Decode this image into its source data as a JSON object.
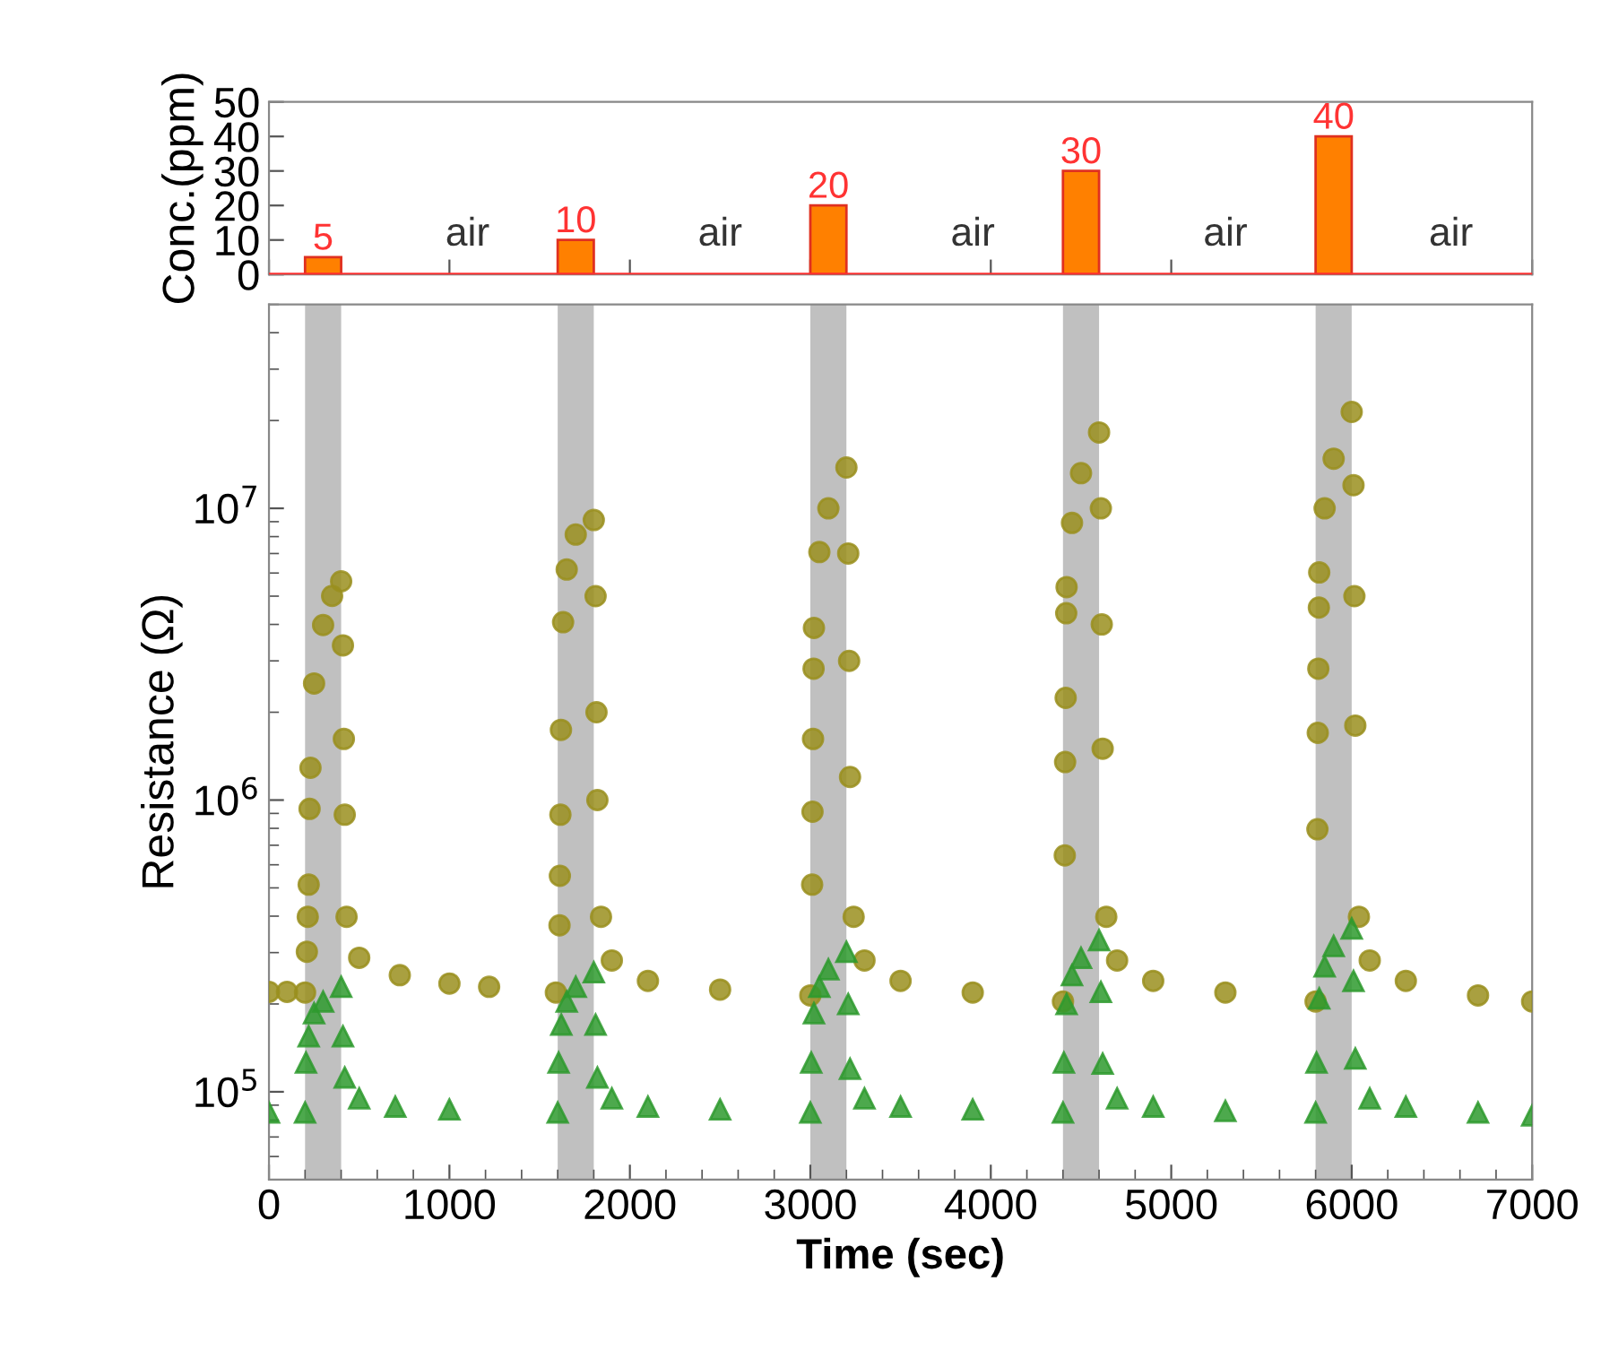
{
  "chart_data": [
    {
      "type": "bar",
      "ylabel": "Conc.(ppm)",
      "x": [
        300,
        1700,
        3100,
        4500,
        5900
      ],
      "values": [
        5,
        10,
        20,
        30,
        40
      ],
      "color": "#ff8000",
      "data_labels": true,
      "xlim": [
        0,
        7000
      ],
      "xticks": [
        0,
        1000,
        2000,
        3000,
        4000,
        5000,
        6000,
        7000
      ],
      "ylim": [
        0,
        50
      ],
      "yticks": [
        0,
        10,
        20,
        30,
        40,
        50
      ],
      "tick_labels": "y",
      "ref_lines": [
        {
          "axis": "y",
          "value": 0,
          "color": "#ff3030"
        }
      ],
      "annotations": [
        "air",
        "air",
        "air",
        "air",
        "air"
      ]
    },
    {
      "type": "scatter",
      "xlabel": "Time (sec)",
      "ylabel": "Resistance (Ω)",
      "log": "y",
      "xlim": [
        0,
        7000
      ],
      "xticks": [
        0,
        1000,
        2000,
        3000,
        4000,
        5000,
        6000,
        7000
      ],
      "ylim": [
        50000,
        50000000
      ],
      "yticks": [
        {
          "value": 100000,
          "label": "10$^{5}$"
        },
        {
          "value": 1000000,
          "label": "10$^{6}$"
        },
        {
          "value": 10000000,
          "label": "10$^{7}$"
        }
      ],
      "bands": [
        {
          "axis": "x",
          "from": 200,
          "to": 400,
          "color": "#c0c0c0"
        },
        {
          "axis": "x",
          "from": 1600,
          "to": 1800,
          "color": "#c0c0c0"
        },
        {
          "axis": "x",
          "from": 3000,
          "to": 3200,
          "color": "#c0c0c0"
        },
        {
          "axis": "x",
          "from": 4400,
          "to": 4600,
          "color": "#c0c0c0"
        },
        {
          "axis": "x",
          "from": 5800,
          "to": 6000,
          "color": "#c0c0c0"
        }
      ],
      "series": [
        {
          "color": "#9a8f1e",
          "marker": "circle",
          "x": [
            0,
            100,
            200,
            210,
            215,
            220,
            225,
            230,
            250,
            300,
            350,
            400,
            410,
            415,
            420,
            430,
            500,
            725,
            1000,
            1220,
            1590,
            1610,
            1612,
            1615,
            1618,
            1630,
            1650,
            1700,
            1800,
            1810,
            1815,
            1820,
            1840,
            1900,
            2100,
            2500,
            3000,
            3010,
            3012,
            3015,
            3018,
            3020,
            3050,
            3100,
            3200,
            3210,
            3215,
            3220,
            3240,
            3300,
            3500,
            3900,
            4400,
            4410,
            4412,
            4415,
            4418,
            4420,
            4450,
            4500,
            4600,
            4610,
            4615,
            4620,
            4640,
            4700,
            4900,
            5300,
            5800,
            5810,
            5812,
            5815,
            5818,
            5820,
            5850,
            5900,
            6000,
            6010,
            6015,
            6020,
            6040,
            6100,
            6300,
            6700,
            7000
          ],
          "values": [
            220000,
            220000,
            219000,
            302000,
            398000,
            513000,
            933000,
            1290000,
            2510000,
            3980000,
            5010000,
            5620000,
            3390000,
            1620000,
            891000,
            398000,
            288000,
            251000,
            235000,
            229000,
            219000,
            372000,
            550000,
            891000,
            1740000,
            4070000,
            6170000,
            8130000,
            9120000,
            5000000,
            2000000,
            1000000,
            398000,
            282000,
            240000,
            224000,
            214000,
            513000,
            912000,
            1620000,
            2820000,
            3890000,
            7080000,
            10000000,
            13800000,
            7000000,
            3000000,
            1200000,
            398000,
            282000,
            240000,
            219000,
            204000,
            646000,
            1350000,
            2240000,
            4370000,
            5370000,
            8910000,
            13200000,
            18200000,
            10000000,
            4000000,
            1500000,
            398000,
            282000,
            240000,
            219000,
            204000,
            794000,
            1700000,
            2820000,
            4570000,
            6030000,
            10000000,
            14800000,
            21400000,
            12000000,
            5000000,
            1800000,
            398000,
            282000,
            240000,
            214000,
            204000
          ]
        },
        {
          "color": "#2e9a2e",
          "marker": "triangle",
          "x": [
            0,
            200,
            205,
            220,
            250,
            300,
            400,
            410,
            420,
            500,
            700,
            1000,
            1600,
            1605,
            1620,
            1650,
            1700,
            1800,
            1810,
            1820,
            1900,
            2100,
            2500,
            3000,
            3005,
            3020,
            3050,
            3100,
            3200,
            3210,
            3220,
            3300,
            3500,
            3900,
            4400,
            4405,
            4420,
            4450,
            4500,
            4600,
            4610,
            4620,
            4700,
            4900,
            5300,
            5800,
            5805,
            5820,
            5850,
            5900,
            6000,
            6010,
            6020,
            6100,
            6300,
            6700,
            7000
          ],
          "values": [
            85000,
            85000,
            126000,
            155000,
            186000,
            204000,
            229000,
            155000,
            112000,
            95000,
            89000,
            87000,
            85000,
            126000,
            170000,
            204000,
            229000,
            257000,
            170000,
            112000,
            95000,
            89000,
            87000,
            85000,
            126000,
            186000,
            229000,
            263000,
            302000,
            200000,
            120000,
            95000,
            89000,
            87000,
            85000,
            126000,
            200000,
            251000,
            288000,
            331000,
            220000,
            125000,
            95000,
            89000,
            86000,
            85000,
            126000,
            209000,
            269000,
            316000,
            363000,
            240000,
            130000,
            95000,
            89000,
            85000,
            83000
          ]
        }
      ]
    }
  ]
}
